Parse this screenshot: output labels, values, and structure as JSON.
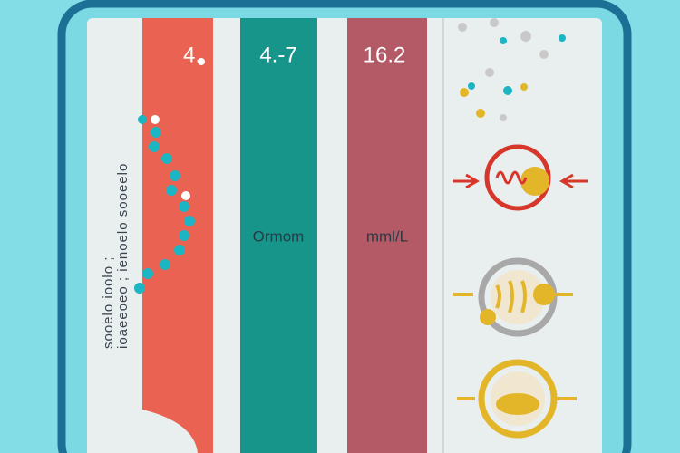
{
  "side_text": [
    "sooelo ioolo ;",
    "ioaeeoeo ; ienoelo sooeelo"
  ],
  "columns": [
    {
      "value": "4.",
      "unit": null
    },
    {
      "value": "4.-7",
      "unit": "Ormom"
    },
    {
      "value": "16.2",
      "unit": "mml/L"
    }
  ]
}
